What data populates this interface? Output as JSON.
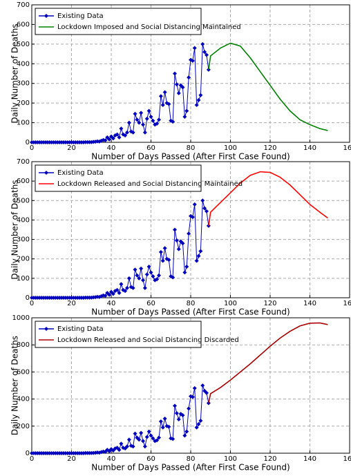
{
  "chart_data": [
    {
      "type": "line",
      "xlabel": "Number of Days Passed (After First Case Found)",
      "ylabel": "Daily Number of Deaths",
      "xlim": [
        0,
        160
      ],
      "ylim": [
        0,
        700
      ],
      "xticks": [
        0,
        20,
        40,
        60,
        80,
        100,
        120,
        140,
        160
      ],
      "yticks": [
        0,
        100,
        200,
        300,
        400,
        500,
        600,
        700
      ],
      "grid": true,
      "legend": "upper left",
      "series": [
        {
          "name": "Existing Data",
          "color": "#0000bf",
          "marker": "diamond",
          "x": [
            0,
            1,
            2,
            3,
            4,
            5,
            6,
            7,
            8,
            9,
            10,
            11,
            12,
            13,
            14,
            15,
            16,
            17,
            18,
            19,
            20,
            21,
            22,
            23,
            24,
            25,
            26,
            27,
            28,
            29,
            30,
            31,
            32,
            33,
            34,
            35,
            36,
            37,
            38,
            39,
            40,
            41,
            42,
            43,
            44,
            45,
            46,
            47,
            48,
            49,
            50,
            51,
            52,
            53,
            54,
            55,
            56,
            57,
            58,
            59,
            60,
            61,
            62,
            63,
            64,
            65,
            66,
            67,
            68,
            69,
            70,
            71,
            72,
            73,
            74,
            75,
            76,
            77,
            78,
            79,
            80,
            81,
            82,
            83,
            84,
            85,
            86,
            87,
            88,
            89
          ],
          "values": [
            0,
            0,
            0,
            0,
            0,
            0,
            0,
            0,
            0,
            0,
            0,
            0,
            0,
            0,
            0,
            0,
            0,
            0,
            0,
            0,
            0,
            0,
            0,
            0,
            0,
            0,
            0,
            1,
            1,
            1,
            1,
            2,
            3,
            5,
            4,
            8,
            12,
            10,
            25,
            15,
            30,
            20,
            35,
            40,
            25,
            70,
            40,
            35,
            50,
            100,
            55,
            50,
            145,
            115,
            100,
            150,
            90,
            50,
            120,
            160,
            130,
            110,
            90,
            95,
            115,
            235,
            190,
            255,
            200,
            195,
            110,
            105,
            350,
            295,
            250,
            290,
            280,
            130,
            160,
            330,
            420,
            415,
            480,
            190,
            215,
            240,
            500,
            460,
            445,
            370
          ]
        },
        {
          "name": "Lockdown Imposed and Social Distancing Maintained",
          "color": "#008000",
          "marker": "none",
          "x": [
            89,
            90,
            95,
            100,
            105,
            110,
            115,
            120,
            125,
            130,
            135,
            140,
            145,
            149
          ],
          "values": [
            370,
            440,
            480,
            505,
            490,
            430,
            360,
            290,
            220,
            160,
            115,
            90,
            70,
            60
          ]
        }
      ]
    },
    {
      "type": "line",
      "xlabel": "Number of Days Passed (After First Case Found)",
      "ylabel": "Daily Number of Deaths",
      "xlim": [
        0,
        160
      ],
      "ylim": [
        0,
        700
      ],
      "xticks": [
        0,
        20,
        40,
        60,
        80,
        100,
        120,
        140,
        160
      ],
      "yticks": [
        0,
        100,
        200,
        300,
        400,
        500,
        600,
        700
      ],
      "grid": true,
      "legend": "upper left",
      "series": [
        {
          "name": "Existing Data",
          "color": "#0000bf",
          "marker": "diamond",
          "x": [
            0,
            1,
            2,
            3,
            4,
            5,
            6,
            7,
            8,
            9,
            10,
            11,
            12,
            13,
            14,
            15,
            16,
            17,
            18,
            19,
            20,
            21,
            22,
            23,
            24,
            25,
            26,
            27,
            28,
            29,
            30,
            31,
            32,
            33,
            34,
            35,
            36,
            37,
            38,
            39,
            40,
            41,
            42,
            43,
            44,
            45,
            46,
            47,
            48,
            49,
            50,
            51,
            52,
            53,
            54,
            55,
            56,
            57,
            58,
            59,
            60,
            61,
            62,
            63,
            64,
            65,
            66,
            67,
            68,
            69,
            70,
            71,
            72,
            73,
            74,
            75,
            76,
            77,
            78,
            79,
            80,
            81,
            82,
            83,
            84,
            85,
            86,
            87,
            88,
            89
          ],
          "values": [
            0,
            0,
            0,
            0,
            0,
            0,
            0,
            0,
            0,
            0,
            0,
            0,
            0,
            0,
            0,
            0,
            0,
            0,
            0,
            0,
            0,
            0,
            0,
            0,
            0,
            0,
            0,
            1,
            1,
            1,
            1,
            2,
            3,
            5,
            4,
            8,
            12,
            10,
            25,
            15,
            30,
            20,
            35,
            40,
            25,
            70,
            40,
            35,
            50,
            100,
            55,
            50,
            145,
            115,
            100,
            150,
            90,
            50,
            120,
            160,
            130,
            110,
            90,
            95,
            115,
            235,
            190,
            255,
            200,
            195,
            110,
            105,
            350,
            295,
            250,
            290,
            280,
            130,
            160,
            330,
            420,
            415,
            480,
            190,
            215,
            240,
            500,
            460,
            445,
            370
          ]
        },
        {
          "name": "Lockdown Released and Social Distancing Maintained",
          "color": "#ff0000",
          "marker": "none",
          "x": [
            89,
            90,
            95,
            100,
            105,
            110,
            115,
            120,
            125,
            130,
            135,
            140,
            145,
            149
          ],
          "values": [
            370,
            440,
            490,
            540,
            590,
            630,
            648,
            645,
            620,
            580,
            530,
            480,
            440,
            410
          ]
        }
      ]
    },
    {
      "type": "line",
      "xlabel": "Number of Days Passed (After First Case Found)",
      "ylabel": "Daily Number of Deaths",
      "xlim": [
        0,
        160
      ],
      "ylim": [
        0,
        1000
      ],
      "xticks": [
        0,
        20,
        40,
        60,
        80,
        100,
        120,
        140,
        160
      ],
      "yticks": [
        0,
        200,
        400,
        600,
        800,
        1000
      ],
      "grid": true,
      "legend": "upper left",
      "series": [
        {
          "name": "Existing Data",
          "color": "#0000bf",
          "marker": "diamond",
          "x": [
            0,
            1,
            2,
            3,
            4,
            5,
            6,
            7,
            8,
            9,
            10,
            11,
            12,
            13,
            14,
            15,
            16,
            17,
            18,
            19,
            20,
            21,
            22,
            23,
            24,
            25,
            26,
            27,
            28,
            29,
            30,
            31,
            32,
            33,
            34,
            35,
            36,
            37,
            38,
            39,
            40,
            41,
            42,
            43,
            44,
            45,
            46,
            47,
            48,
            49,
            50,
            51,
            52,
            53,
            54,
            55,
            56,
            57,
            58,
            59,
            60,
            61,
            62,
            63,
            64,
            65,
            66,
            67,
            68,
            69,
            70,
            71,
            72,
            73,
            74,
            75,
            76,
            77,
            78,
            79,
            80,
            81,
            82,
            83,
            84,
            85,
            86,
            87,
            88,
            89
          ],
          "values": [
            0,
            0,
            0,
            0,
            0,
            0,
            0,
            0,
            0,
            0,
            0,
            0,
            0,
            0,
            0,
            0,
            0,
            0,
            0,
            0,
            0,
            0,
            0,
            0,
            0,
            0,
            0,
            1,
            1,
            1,
            1,
            2,
            3,
            5,
            4,
            8,
            12,
            10,
            25,
            15,
            30,
            20,
            35,
            40,
            25,
            70,
            40,
            35,
            50,
            100,
            55,
            50,
            145,
            115,
            100,
            150,
            90,
            50,
            120,
            160,
            130,
            110,
            90,
            95,
            115,
            235,
            190,
            255,
            200,
            195,
            110,
            105,
            350,
            295,
            250,
            290,
            280,
            130,
            160,
            330,
            420,
            415,
            480,
            190,
            215,
            240,
            500,
            460,
            445,
            370
          ]
        },
        {
          "name": "Lockdown Released and Social Distancing Discarded",
          "color": "#aa0000",
          "marker": "none",
          "x": [
            89,
            90,
            95,
            100,
            105,
            110,
            115,
            120,
            125,
            130,
            135,
            140,
            145,
            149
          ],
          "values": [
            370,
            440,
            485,
            540,
            600,
            660,
            725,
            790,
            850,
            900,
            940,
            960,
            962,
            950
          ]
        }
      ]
    }
  ]
}
